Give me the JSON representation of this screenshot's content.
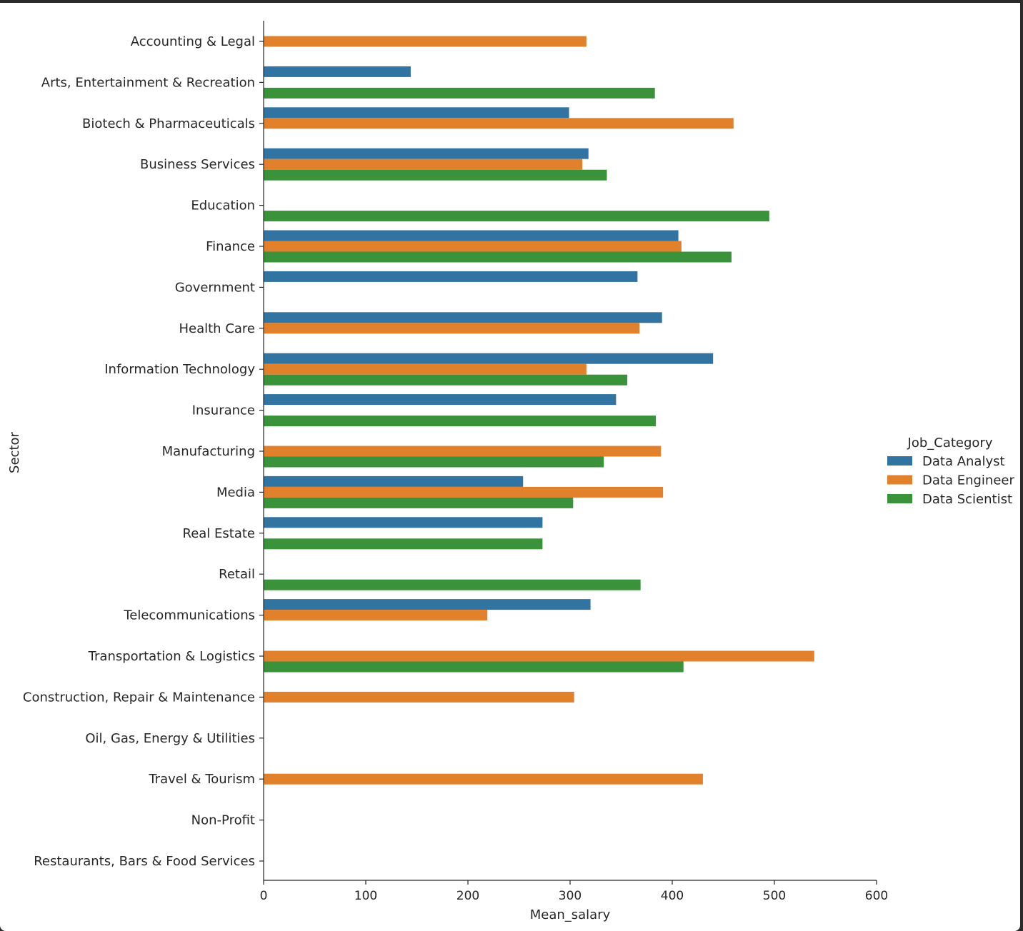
{
  "colors": {
    "Data Analyst": "#3274a1",
    "Data Engineer": "#e1812c",
    "Data Scientist": "#3a923a"
  },
  "chart_data": {
    "type": "bar",
    "orientation": "horizontal",
    "title": "",
    "xlabel": "Mean_salary",
    "ylabel": "Sector",
    "xlim": [
      0,
      600
    ],
    "xticks": [
      0,
      100,
      200,
      300,
      400,
      500,
      600
    ],
    "grid": false,
    "legend_title": "Job_Category",
    "legend_position": "right",
    "categories": [
      "Accounting & Legal",
      "Arts, Entertainment & Recreation",
      "Biotech & Pharmaceuticals",
      "Business Services",
      "Education",
      "Finance",
      "Government",
      "Health Care",
      "Information Technology",
      "Insurance",
      "Manufacturing",
      "Media",
      "Real Estate",
      "Retail",
      "Telecommunications",
      "Transportation & Logistics",
      "Construction, Repair & Maintenance",
      "Oil, Gas, Energy & Utilities",
      "Travel & Tourism",
      "Non-Profit",
      "Restaurants, Bars & Food Services"
    ],
    "series": [
      {
        "name": "Data Analyst",
        "values": [
          null,
          144,
          299,
          318,
          null,
          406,
          366,
          390,
          440,
          345,
          null,
          254,
          273,
          null,
          320,
          null,
          null,
          null,
          null,
          null,
          null
        ]
      },
      {
        "name": "Data Engineer",
        "values": [
          316,
          null,
          460,
          312,
          null,
          409,
          null,
          368,
          316,
          null,
          389,
          391,
          null,
          null,
          219,
          539,
          304,
          null,
          430,
          null,
          null
        ]
      },
      {
        "name": "Data Scientist",
        "values": [
          null,
          383,
          null,
          336,
          495,
          458,
          null,
          null,
          356,
          384,
          333,
          303,
          273,
          369,
          null,
          411,
          null,
          null,
          null,
          null,
          null
        ]
      }
    ]
  }
}
